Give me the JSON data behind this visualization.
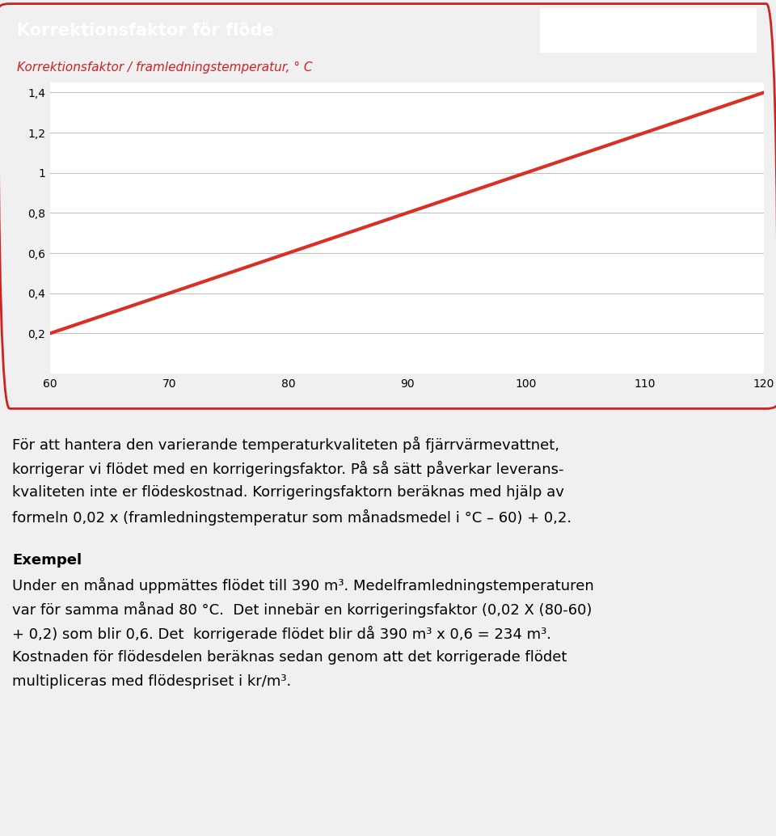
{
  "title": "Korrektionsfaktor för flöde",
  "subtitle": "Korrektionsfaktor / framledningstemperatur, ° C",
  "x_values": [
    60,
    70,
    80,
    90,
    100,
    110,
    120
  ],
  "y_values": [
    0.2,
    0.4,
    0.6,
    0.8,
    1.0,
    1.2,
    1.4
  ],
  "x_min": 60,
  "x_max": 120,
  "y_min": 0,
  "y_max": 1.45,
  "y_ticks": [
    0.2,
    0.4,
    0.6,
    0.8,
    1.0,
    1.2,
    1.4
  ],
  "y_tick_labels": [
    "0,2",
    "0,4",
    "0,6",
    "0,8",
    "1",
    "1,2",
    "1,4"
  ],
  "x_ticks": [
    60,
    70,
    80,
    90,
    100,
    110,
    120
  ],
  "line_color": "#d93025",
  "grid_color": "#c0c0c0",
  "header_bg_color": "#cc2222",
  "header_text_color": "#ffffff",
  "subtitle_bg_color": "#e8e8e8",
  "subtitle_text_color": "#cc2222",
  "chart_bg_color": "#ffffff",
  "outer_bg_color": "#f0f0f0",
  "border_color": "#cc2222",
  "title_fontsize": 15,
  "subtitle_fontsize": 11,
  "tick_fontsize": 10,
  "body_fontsize": 13,
  "example_fontsize": 13,
  "line_width": 3.0,
  "paragraph1_line1": "För att hantera den varierande temperaturkvaliteten på fjärrvärmevattnet,",
  "paragraph1_line2": "korrigerar vi flödet med en korrigeringsfaktor. På så sätt påverkar leverans-",
  "paragraph1_line3": "kvaliteten inte er flödeskostnad. Korrigeringsfaktorn beräknas med hjälp av",
  "paragraph1_line4": "formeln 0,02 x (framledningstemperatur som månadsmedel i °C – 60) + 0,2.",
  "example_title": "Exempel",
  "example_line1": "Under en månad uppmättes flödet till 390 m³. Medelframledningstemperaturen",
  "example_line2": "var för samma månad 80 °C.  Det innebär en korrigeringsfaktor (0,02 X (80-60)",
  "example_line3": "+ 0,2) som blir 0,6. Det  korrigerade flödet blir då 390 m³ x 0,6 = 234 m³.",
  "example_line4": "Kostnaden för flödesdelen beräknas sedan genom att det korrigerade flödet",
  "example_line5": "multipliceras med flödespriset i kr/m³."
}
